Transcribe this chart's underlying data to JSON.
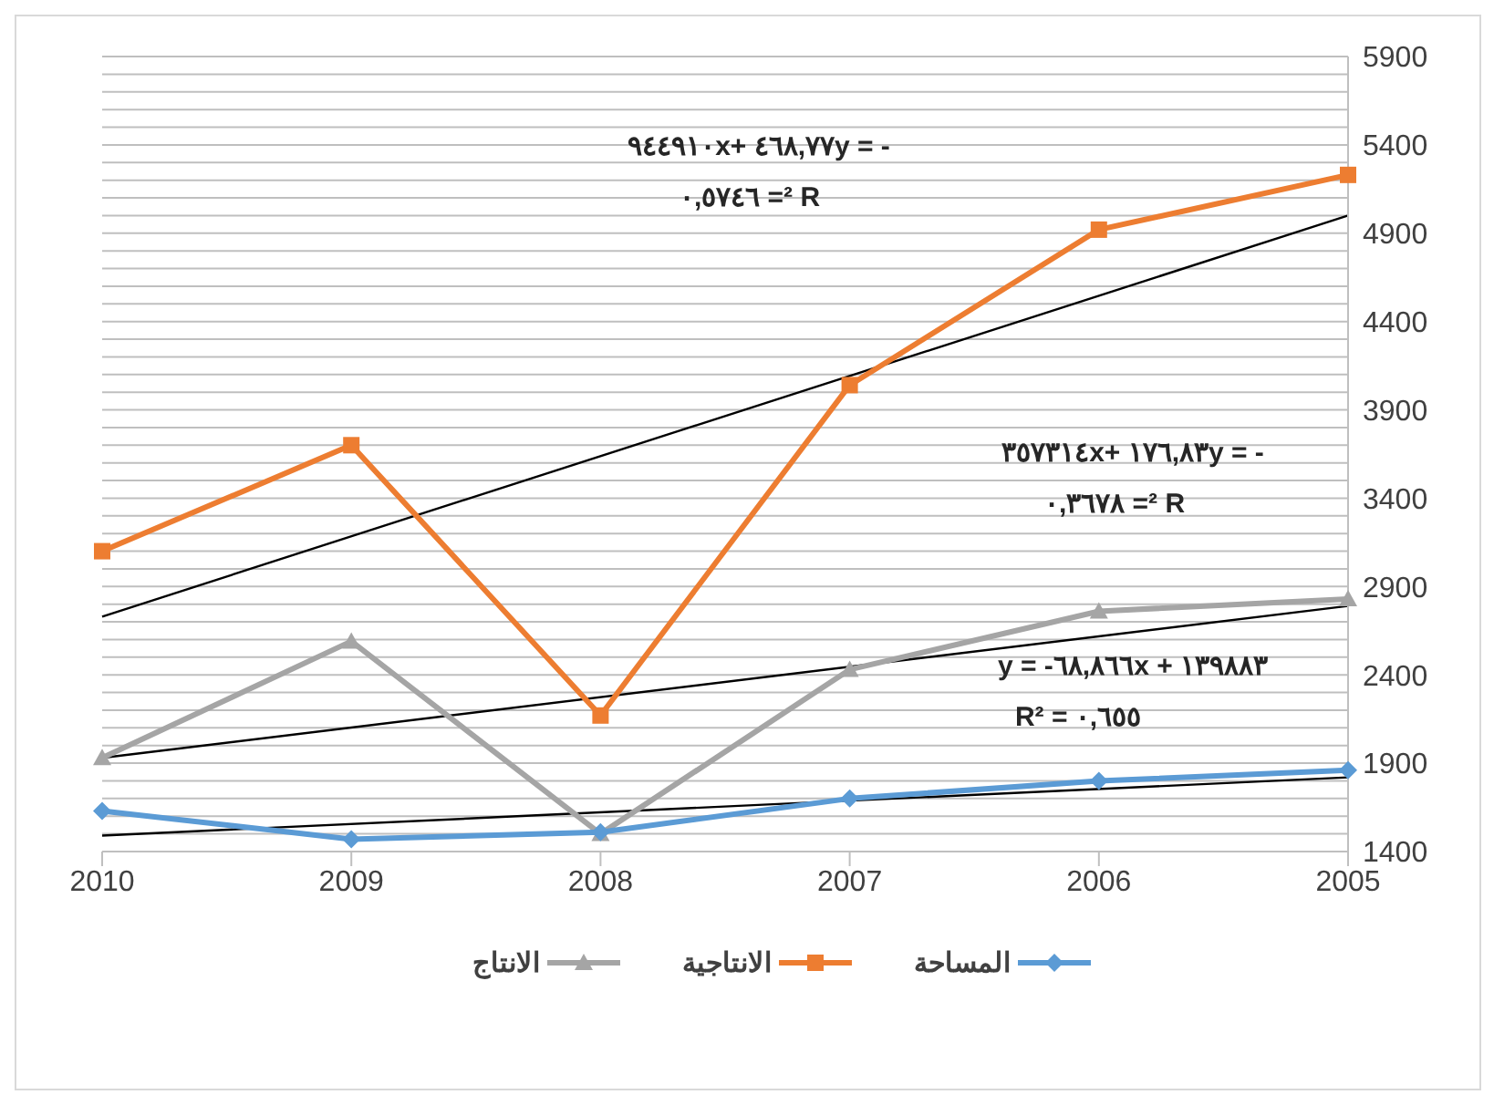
{
  "chart_data": {
    "type": "line",
    "categories": [
      "2010",
      "2009",
      "2008",
      "2007",
      "2006",
      "2005"
    ],
    "series": [
      {
        "name": "المساحة",
        "color": "#5b9bd5",
        "marker": "diamond",
        "values": [
          1630,
          1470,
          1510,
          1700,
          1800,
          1860
        ]
      },
      {
        "name": "الانتاجية",
        "color": "#ed7d31",
        "marker": "square",
        "values": [
          3100,
          3700,
          2170,
          4040,
          4920,
          5230
        ]
      },
      {
        "name": "الانتاج",
        "color": "#a5a5a5",
        "marker": "triangle",
        "values": [
          1930,
          2590,
          1500,
          2430,
          2760,
          2830
        ]
      },
      {
        "color": "#000000",
        "marker": "none",
        "values": [
          2730,
          null,
          null,
          null,
          null,
          5000
        ]
      },
      {
        "color": "#000000",
        "marker": "none",
        "values": [
          1930,
          null,
          null,
          null,
          null,
          2790
        ]
      },
      {
        "color": "#000000",
        "marker": "none",
        "values": [
          1490,
          null,
          null,
          null,
          null,
          1820
        ]
      }
    ],
    "ylim": [
      1400,
      5900
    ],
    "yticks": [
      1400,
      {
        "value": 1500,
        "label": null
      },
      {
        "value": 1600,
        "label": null
      },
      {
        "value": 1700,
        "label": null
      },
      {
        "value": 1800,
        "label": null
      },
      1900,
      {
        "value": 2000,
        "label": null
      },
      {
        "value": 2100,
        "label": null
      },
      {
        "value": 2200,
        "label": null
      },
      {
        "value": 2300,
        "label": null
      },
      2400,
      {
        "value": 2500,
        "label": null
      },
      {
        "value": 2600,
        "label": null
      },
      {
        "value": 2700,
        "label": null
      },
      {
        "value": 2800,
        "label": null
      },
      2900,
      {
        "value": 3000,
        "label": null
      },
      {
        "value": 3100,
        "label": null
      },
      {
        "value": 3200,
        "label": null
      },
      {
        "value": 3300,
        "label": null
      },
      3400,
      {
        "value": 3500,
        "label": null
      },
      {
        "value": 3600,
        "label": null
      },
      {
        "value": 3700,
        "label": null
      },
      {
        "value": 3800,
        "label": null
      },
      3900,
      {
        "value": 4000,
        "label": null
      },
      {
        "value": 4100,
        "label": null
      },
      {
        "value": 4200,
        "label": null
      },
      {
        "value": 4300,
        "label": null
      },
      4400,
      {
        "value": 4500,
        "label": null
      },
      {
        "value": 4600,
        "label": null
      },
      {
        "value": 4700,
        "label": null
      },
      {
        "value": 4800,
        "label": null
      },
      4900,
      {
        "value": 5000,
        "label": null
      },
      {
        "value": 5100,
        "label": null
      },
      {
        "value": 5200,
        "label": null
      },
      {
        "value": 5300,
        "label": null
      },
      5400,
      {
        "value": 5500,
        "label": null
      },
      {
        "value": 5600,
        "label": null
      },
      {
        "value": 5700,
        "label": null
      },
      {
        "value": 5800,
        "label": null
      },
      5900
    ],
    "grid": "y",
    "legend": "bottom",
    "annotations": [
      "٩٤٤٩١٠x+ ٤٦٨,٧٧y = -",
      "٠,٥٧٤٦ =² R",
      "٣٥٧٣١٤x+ ١٧٦,٨٣y = -",
      "٠,٣٦٧٨ =² R",
      "y = -٦٨,٨٦٦x + ١٣٩٨٨٣",
      "R² = ٠,٦٥٥"
    ]
  }
}
